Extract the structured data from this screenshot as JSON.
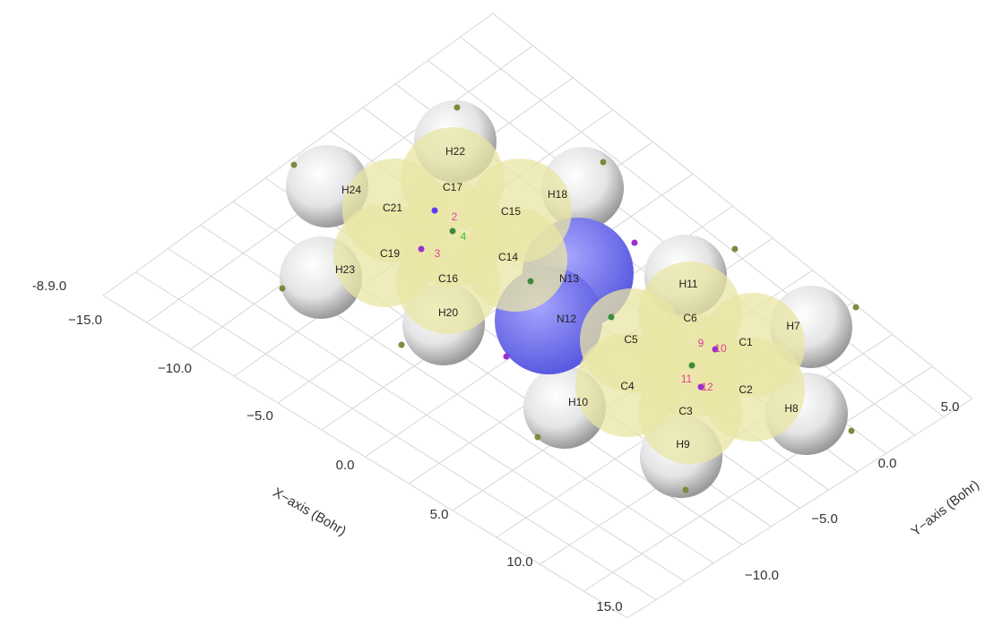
{
  "scene": {
    "z_axis": {
      "tick": "-8.9.0"
    },
    "x_axis": {
      "title": "X−axis (Bohr)",
      "ticks": [
        "−15.0",
        "−10.0",
        "−5.0",
        "0.0",
        "5.0",
        "10.0",
        "15.0"
      ]
    },
    "y_axis": {
      "title": "Y−axis (Bohr)",
      "ticks": [
        "5.0",
        "0.0",
        "−5.0",
        "−10.0"
      ]
    },
    "atoms": [
      "H22",
      "C17",
      "H24",
      "H18",
      "C21",
      "C15",
      "C19",
      "C14",
      "H23",
      "C16",
      "N13",
      "H11",
      "H20",
      "N12",
      "C6",
      "H7",
      "C5",
      "C1",
      "C4",
      "C2",
      "H10",
      "C3",
      "H8",
      "H9"
    ],
    "critical_points": [
      "2",
      "4",
      "3",
      "9",
      "10",
      "11",
      "12"
    ]
  }
}
